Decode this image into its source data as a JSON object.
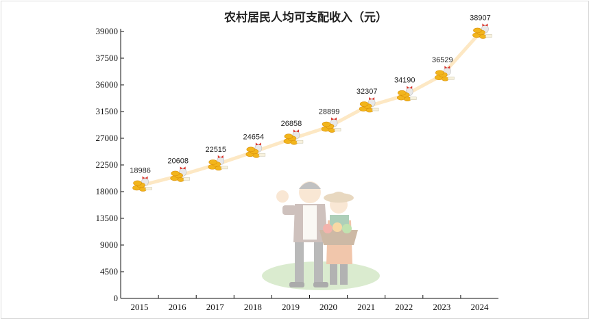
{
  "chart_data": {
    "type": "line",
    "title": "农村居民人均可支配收入（元）",
    "categories": [
      "2015",
      "2016",
      "2017",
      "2018",
      "2019",
      "2020",
      "2021",
      "2022",
      "2023",
      "2024"
    ],
    "series": [
      {
        "values": [
          18986,
          20608,
          22515,
          24654,
          26858,
          28899,
          32307,
          34190,
          36529,
          38907
        ]
      }
    ],
    "y_ticks": [
      "39000",
      "37500",
      "36000",
      "31500",
      "27000",
      "22500",
      "18000",
      "13500",
      "9000",
      "4500",
      "0"
    ],
    "grid": false,
    "colors": {
      "line": "#fde8c4",
      "coin": "#f2b51c",
      "coin_dark": "#d98f0a",
      "bag": "#e8e8e8",
      "bow": "#d9342b"
    }
  }
}
